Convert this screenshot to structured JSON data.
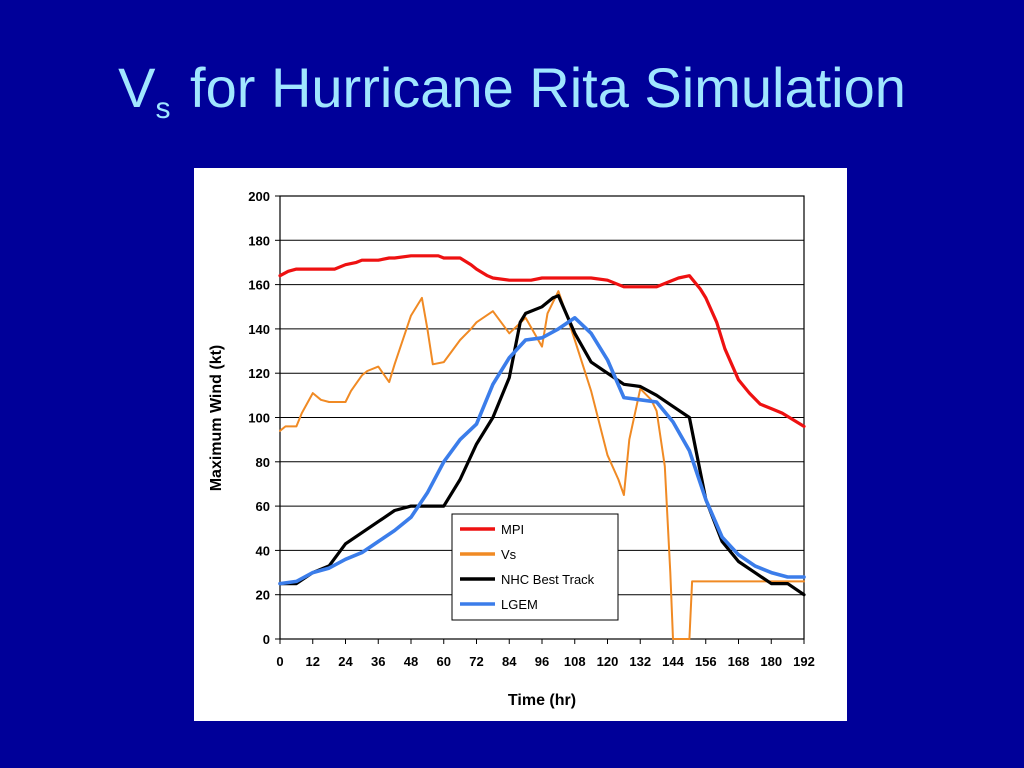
{
  "slide": {
    "title_main": "V",
    "title_sub": "s",
    "title_rest": " for Hurricane Rita Simulation"
  },
  "chart_data": {
    "type": "line",
    "title": "",
    "xlabel": "Time (hr)",
    "ylabel": "Maximum Wind (kt)",
    "xlim": [
      0,
      192
    ],
    "ylim": [
      0,
      200
    ],
    "xticks": [
      0,
      12,
      24,
      36,
      48,
      60,
      72,
      84,
      96,
      108,
      120,
      132,
      144,
      156,
      168,
      180,
      192
    ],
    "yticks": [
      0,
      20,
      40,
      60,
      80,
      100,
      120,
      140,
      160,
      180,
      200
    ],
    "grid": "horizontal",
    "legend_position": "lower-center",
    "series": [
      {
        "name": "MPI",
        "color": "#ee1111",
        "x": [
          0,
          3,
          6,
          12,
          18,
          20,
          24,
          28,
          30,
          36,
          40,
          42,
          48,
          54,
          58,
          60,
          66,
          70,
          72,
          76,
          78,
          84,
          88,
          92,
          96,
          102,
          108,
          114,
          120,
          126,
          132,
          138,
          142,
          146,
          150,
          154,
          156,
          160,
          163,
          168,
          172,
          176,
          180,
          184,
          188,
          192
        ],
        "y": [
          164,
          166,
          167,
          167,
          167,
          167,
          169,
          170,
          171,
          171,
          172,
          172,
          173,
          173,
          173,
          172,
          172,
          169,
          167,
          164,
          163,
          162,
          162,
          162,
          163,
          163,
          163,
          163,
          162,
          159,
          159,
          159,
          161,
          163,
          164,
          158,
          154,
          143,
          131,
          117,
          111,
          106,
          104,
          102,
          99,
          96
        ]
      },
      {
        "name": "Vs",
        "color": "#f08a24",
        "x": [
          0,
          2,
          6,
          8,
          12,
          15,
          18,
          20,
          24,
          26,
          30,
          32,
          36,
          40,
          42,
          48,
          52,
          54,
          56,
          60,
          66,
          70,
          72,
          78,
          84,
          90,
          96,
          98,
          102,
          104,
          108,
          114,
          120,
          124,
          126,
          128,
          132,
          136,
          138,
          141,
          143,
          144,
          150,
          151,
          168,
          180,
          192
        ],
        "y": [
          94,
          96,
          96,
          102,
          111,
          108,
          107,
          107,
          107,
          112,
          119,
          121,
          123,
          116,
          124,
          146,
          154,
          140,
          124,
          125,
          135,
          140,
          143,
          148,
          138,
          145,
          132,
          147,
          157,
          150,
          135,
          112,
          83,
          72,
          65,
          90,
          113,
          108,
          103,
          78,
          30,
          0,
          0,
          26,
          26,
          26,
          26
        ]
      },
      {
        "name": "NHC Best Track",
        "color": "#000000",
        "x": [
          0,
          6,
          12,
          18,
          24,
          30,
          36,
          42,
          48,
          52,
          56,
          60,
          66,
          72,
          78,
          84,
          88,
          90,
          96,
          100,
          102,
          108,
          114,
          120,
          126,
          132,
          138,
          144,
          150,
          156,
          162,
          168,
          174,
          180,
          186,
          192
        ],
        "y": [
          25,
          25,
          30,
          33,
          43,
          48,
          53,
          58,
          60,
          60,
          60,
          60,
          72,
          88,
          100,
          118,
          143,
          147,
          150,
          154,
          155,
          138,
          125,
          120,
          115,
          114,
          110,
          105,
          100,
          63,
          44,
          35,
          30,
          25,
          25,
          20
        ]
      },
      {
        "name": "LGEM",
        "color": "#3b7dea",
        "x": [
          0,
          6,
          12,
          18,
          24,
          30,
          36,
          42,
          48,
          54,
          60,
          66,
          72,
          78,
          84,
          90,
          96,
          102,
          108,
          114,
          120,
          126,
          132,
          138,
          144,
          150,
          156,
          162,
          168,
          174,
          180,
          186,
          192
        ],
        "y": [
          25,
          26,
          30,
          32,
          36,
          39,
          44,
          49,
          55,
          66,
          80,
          90,
          97,
          115,
          127,
          135,
          136,
          140,
          145,
          138,
          126,
          109,
          108,
          107,
          98,
          85,
          63,
          46,
          38,
          33,
          30,
          28,
          28
        ]
      }
    ]
  }
}
